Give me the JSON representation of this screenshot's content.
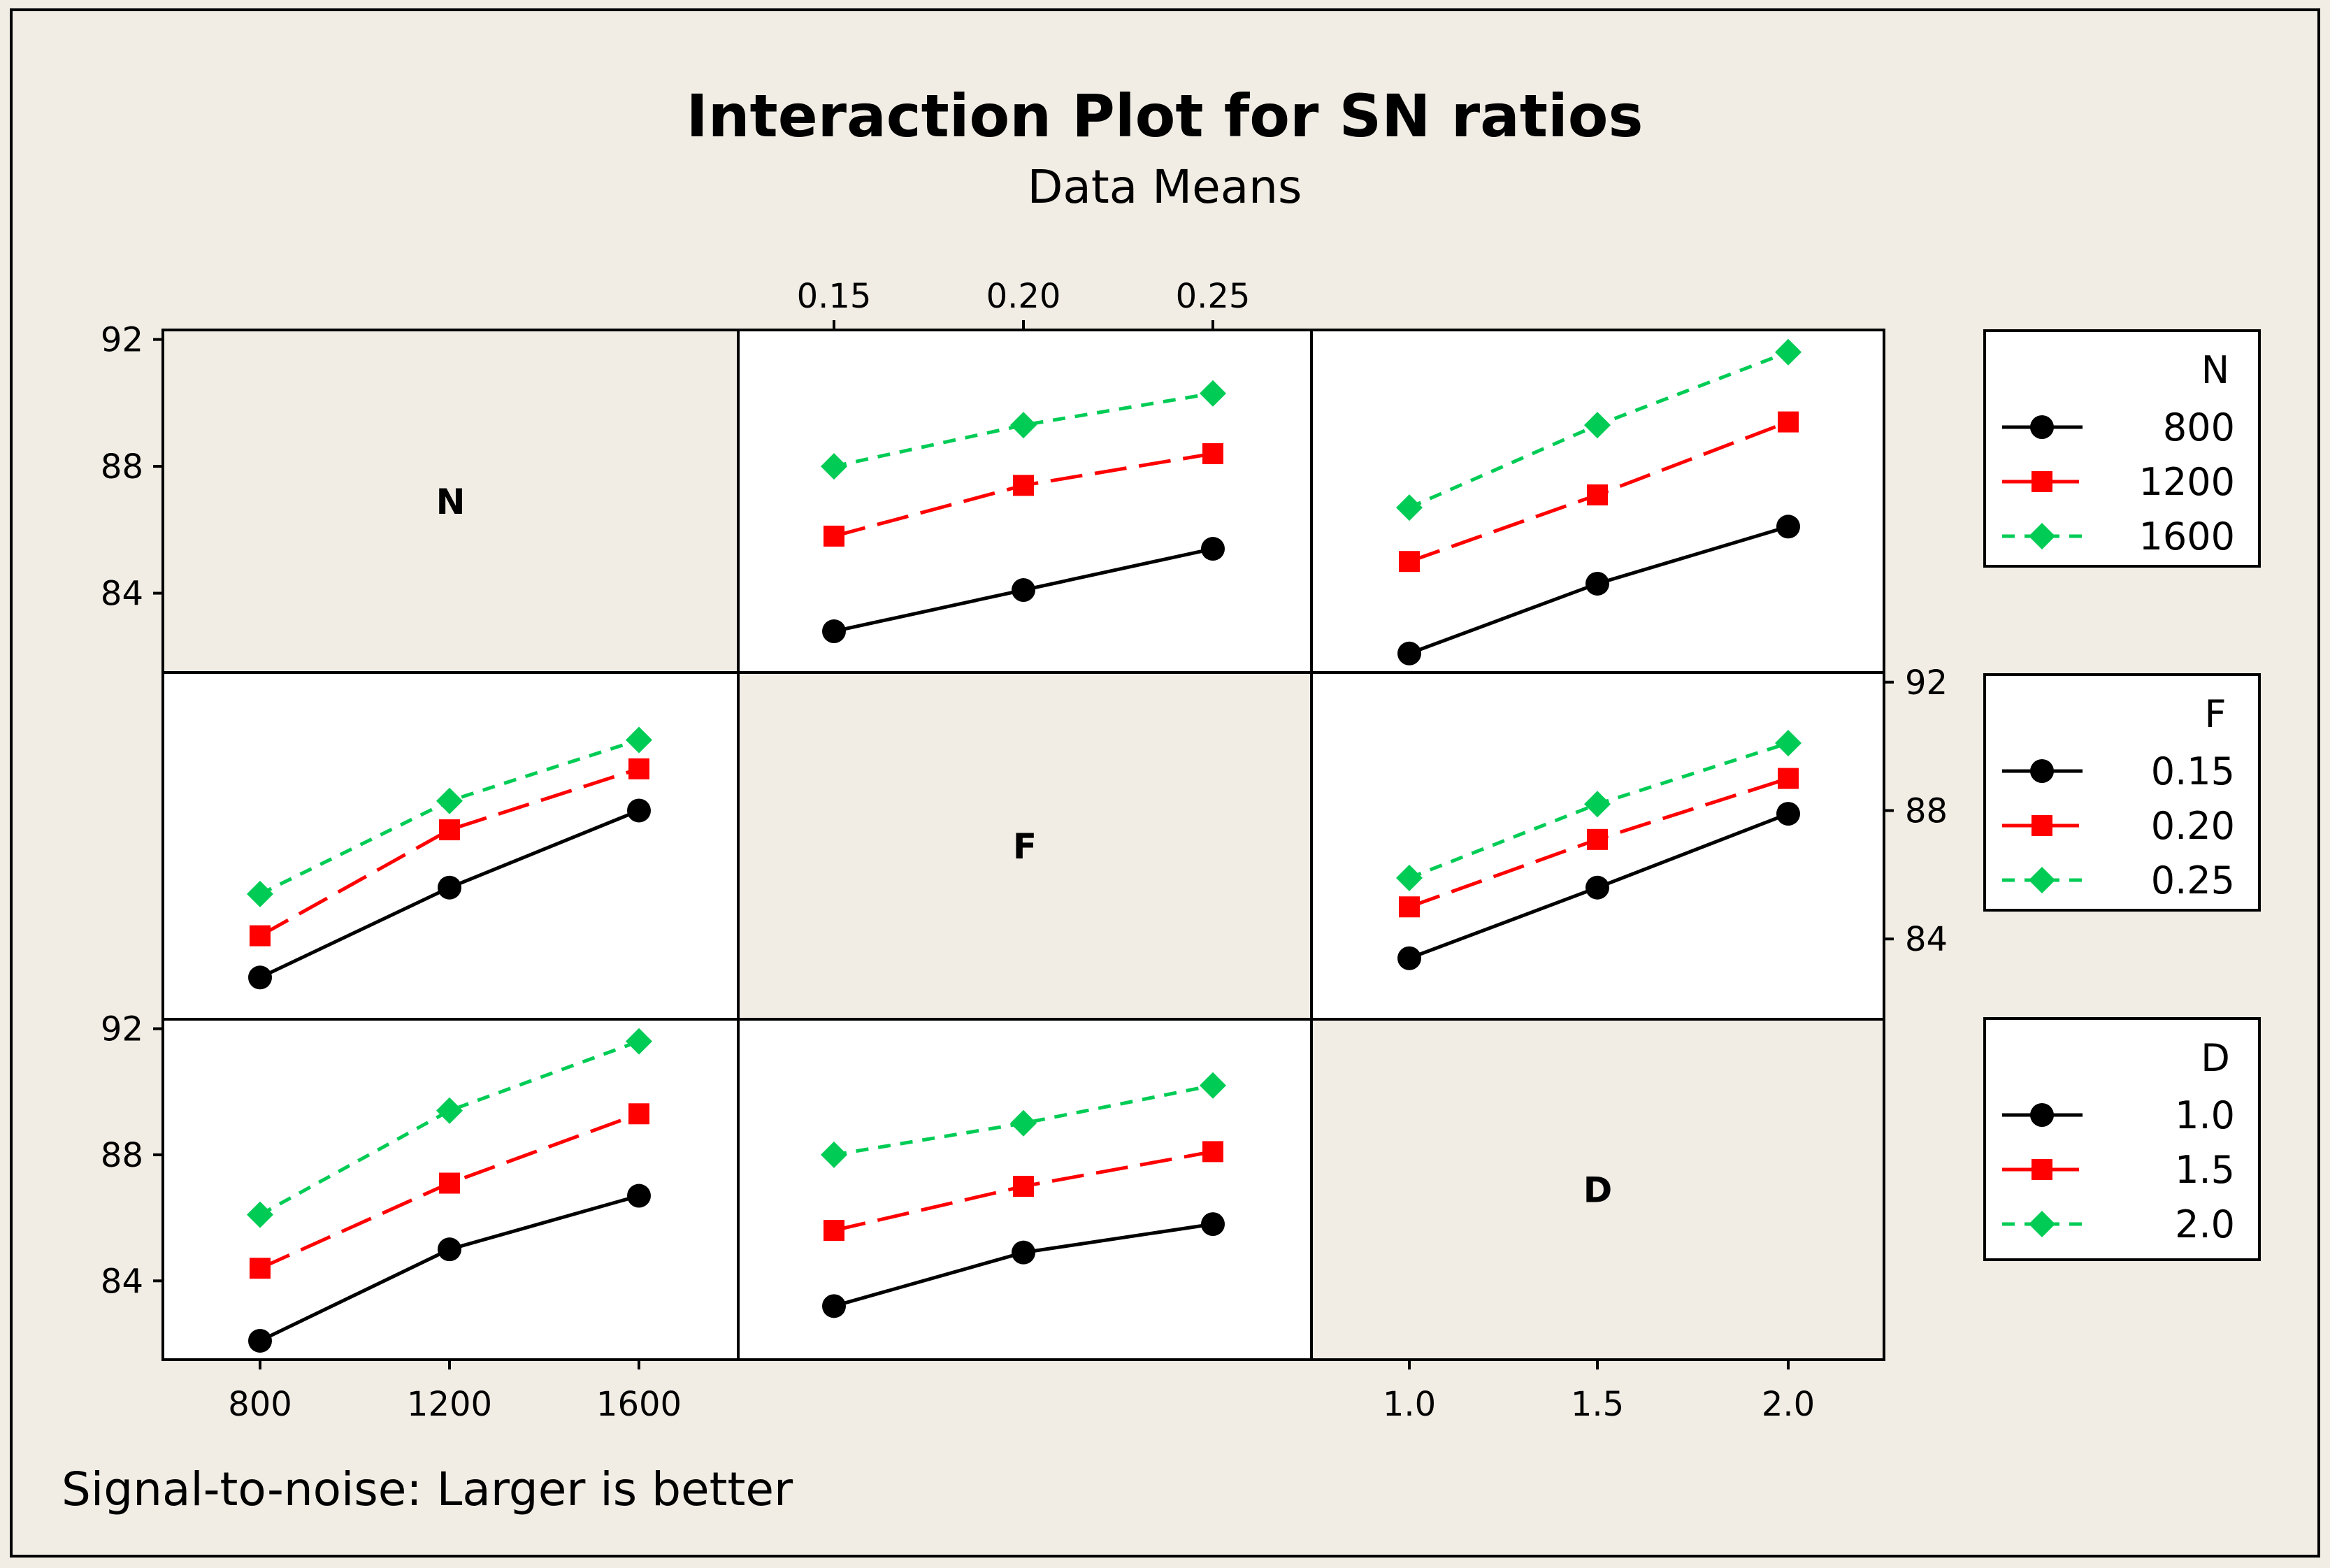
{
  "chart_data": {
    "type": "line",
    "title": "Interaction Plot for SN ratios",
    "subtitle": "Data Means",
    "footnote": "Signal-to-noise: Larger is better",
    "factors": {
      "N": {
        "label": "N",
        "levels": [
          "800",
          "1200",
          "1600"
        ],
        "ticks": [
          "800",
          "1200",
          "1600"
        ]
      },
      "F": {
        "label": "F",
        "levels": [
          "0.15",
          "0.20",
          "0.25"
        ],
        "ticks": [
          "0.15",
          "0.20",
          "0.25"
        ]
      },
      "D": {
        "label": "D",
        "levels": [
          "1.0",
          "1.5",
          "2.0"
        ],
        "ticks": [
          "1.0",
          "1.5",
          "2.0"
        ]
      }
    },
    "y_ticks": [
      "84",
      "88",
      "92"
    ],
    "ylim": [
      81.5,
      92.3
    ],
    "series_style": {
      "colors": [
        "#000000",
        "#ff0000",
        "#00cc55"
      ],
      "markers": [
        "circle",
        "square",
        "diamond"
      ]
    },
    "panels": [
      {
        "row": "N",
        "col": "F",
        "x": [
          0.15,
          0.2,
          0.25
        ],
        "series": [
          {
            "name": "800",
            "values": [
              82.8,
              84.1,
              85.4
            ]
          },
          {
            "name": "1200",
            "values": [
              85.8,
              87.4,
              88.4
            ]
          },
          {
            "name": "1600",
            "values": [
              88.0,
              89.3,
              90.3
            ]
          }
        ]
      },
      {
        "row": "N",
        "col": "D",
        "x": [
          1.0,
          1.5,
          2.0
        ],
        "series": [
          {
            "name": "800",
            "values": [
              82.1,
              84.3,
              86.1
            ]
          },
          {
            "name": "1200",
            "values": [
              85.0,
              87.1,
              89.4
            ]
          },
          {
            "name": "1600",
            "values": [
              86.7,
              89.3,
              91.6
            ]
          }
        ]
      },
      {
        "row": "F",
        "col": "N",
        "x": [
          800,
          1200,
          1600
        ],
        "series": [
          {
            "name": "0.15",
            "values": [
              82.8,
              85.6,
              88.0
            ]
          },
          {
            "name": "0.20",
            "values": [
              84.1,
              87.4,
              89.3
            ]
          },
          {
            "name": "0.25",
            "values": [
              85.4,
              88.3,
              90.2
            ]
          }
        ]
      },
      {
        "row": "F",
        "col": "D",
        "x": [
          1.0,
          1.5,
          2.0
        ],
        "series": [
          {
            "name": "0.15",
            "values": [
              83.4,
              85.6,
              87.9
            ]
          },
          {
            "name": "0.20",
            "values": [
              85.0,
              87.1,
              89.0
            ]
          },
          {
            "name": "0.25",
            "values": [
              85.9,
              88.2,
              90.1
            ]
          }
        ]
      },
      {
        "row": "D",
        "col": "N",
        "x": [
          800,
          1200,
          1600
        ],
        "series": [
          {
            "name": "1.0",
            "values": [
              82.1,
              85.0,
              86.7
            ]
          },
          {
            "name": "1.5",
            "values": [
              84.4,
              87.1,
              89.3
            ]
          },
          {
            "name": "2.0",
            "values": [
              86.1,
              89.4,
              91.6
            ]
          }
        ]
      },
      {
        "row": "D",
        "col": "F",
        "x": [
          0.15,
          0.2,
          0.25
        ],
        "series": [
          {
            "name": "1.0",
            "values": [
              83.2,
              84.9,
              85.8
            ]
          },
          {
            "name": "1.5",
            "values": [
              85.6,
              87.0,
              88.1
            ]
          },
          {
            "name": "2.0",
            "values": [
              88.0,
              89.0,
              90.2
            ]
          }
        ]
      }
    ],
    "legends": [
      {
        "factor": "N",
        "title": "N",
        "items": [
          "800",
          "1200",
          "1600"
        ]
      },
      {
        "factor": "F",
        "title": "F",
        "items": [
          "0.15",
          "0.20",
          "0.25"
        ]
      },
      {
        "factor": "D",
        "title": "D",
        "items": [
          "1.0",
          "1.5",
          "2.0"
        ]
      }
    ]
  }
}
